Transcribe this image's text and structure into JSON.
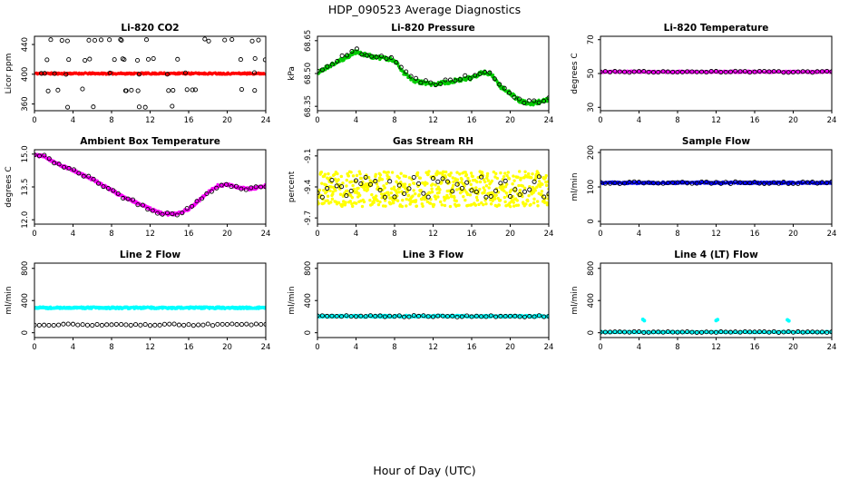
{
  "title": "HDP_090523  Average Diagnostics",
  "footer": "Hour of Day (UTC)",
  "axis": {
    "xlim": [
      0,
      24
    ],
    "xticks": [
      0,
      4,
      8,
      12,
      16,
      20,
      24
    ],
    "xtick_labels": [
      "0",
      "4",
      "8",
      "12",
      "16",
      "20",
      "24"
    ]
  },
  "chart_data": [
    {
      "type": "scatter",
      "name": "li820-co2",
      "title": "Li-820 CO2",
      "ylabel": "Licor ppm",
      "ylim": [
        351,
        451
      ],
      "yticks": [
        360,
        400,
        440
      ],
      "ytick_labels": [
        "360",
        "400",
        "440"
      ],
      "series": [
        {
          "name": "minute-data",
          "style": "dot",
          "color": "#FF0000",
          "mode": "waypoints",
          "waypoints": [
            [
              0,
              401
            ],
            [
              24,
              401
            ]
          ],
          "count": 450,
          "noise": 1.3,
          "size": 1.5,
          "seed": 11
        },
        {
          "name": "halfhour-averages",
          "style": "circle",
          "color": "#000000",
          "mode": "levels",
          "levels": [
            446,
            420,
            401,
            379,
            357
          ],
          "count": 58,
          "noise": 1.5,
          "seed": 12
        }
      ]
    },
    {
      "type": "scatter",
      "name": "li820-pressure",
      "title": "Li-820 Pressure",
      "ylabel": "kPa",
      "ylim": [
        68.33,
        68.67
      ],
      "yticks": [
        68.35,
        68.5,
        68.65
      ],
      "ytick_labels": [
        "68.35",
        "68.50",
        "68.65"
      ],
      "series": [
        {
          "name": "minute-data",
          "style": "dot",
          "color": "#00CC00",
          "mode": "waypoints",
          "waypoints": [
            [
              0,
              68.5
            ],
            [
              1,
              68.53
            ],
            [
              2,
              68.55
            ],
            [
              3,
              68.575
            ],
            [
              4,
              68.6
            ],
            [
              5,
              68.585
            ],
            [
              6,
              68.575
            ],
            [
              7,
              68.57
            ],
            [
              8,
              68.56
            ],
            [
              9,
              68.5
            ],
            [
              10,
              68.465
            ],
            [
              12,
              68.45
            ],
            [
              14,
              68.465
            ],
            [
              16,
              68.48
            ],
            [
              17,
              68.505
            ],
            [
              18,
              68.5
            ],
            [
              19,
              68.44
            ],
            [
              20,
              68.41
            ],
            [
              21,
              68.375
            ],
            [
              22,
              68.36
            ],
            [
              23,
              68.37
            ],
            [
              24,
              68.38
            ]
          ],
          "count": 420,
          "noise": 0.009,
          "size": 1.6,
          "seed": 21
        },
        {
          "name": "halfhour-averages",
          "style": "circle",
          "color": "#000000",
          "mode": "waypoints",
          "waypoints": [
            [
              0,
              68.508
            ],
            [
              1,
              68.538
            ],
            [
              2,
              68.558
            ],
            [
              3,
              68.583
            ],
            [
              4,
              68.608
            ],
            [
              5,
              68.593
            ],
            [
              6,
              68.583
            ],
            [
              7,
              68.578
            ],
            [
              8,
              68.568
            ],
            [
              9,
              68.508
            ],
            [
              10,
              68.473
            ],
            [
              12,
              68.458
            ],
            [
              14,
              68.473
            ],
            [
              16,
              68.488
            ],
            [
              17,
              68.513
            ],
            [
              18,
              68.508
            ],
            [
              19,
              68.448
            ],
            [
              20,
              68.418
            ],
            [
              21,
              68.383
            ],
            [
              22,
              68.368
            ],
            [
              23,
              68.378
            ],
            [
              24,
              68.388
            ]
          ],
          "count": 48,
          "noise": 0.012,
          "seed": 22
        }
      ]
    },
    {
      "type": "scatter",
      "name": "li820-temperature",
      "title": "Li-820 Temperature",
      "ylabel": "degrees C",
      "ylim": [
        28,
        72
      ],
      "yticks": [
        30,
        50,
        70
      ],
      "ytick_labels": [
        "30",
        "50",
        "70"
      ],
      "series": [
        {
          "name": "minute-data",
          "style": "dot",
          "color": "#FF00FF",
          "mode": "waypoints",
          "waypoints": [
            [
              0,
              51
            ],
            [
              24,
              51
            ]
          ],
          "count": 420,
          "noise": 0.5,
          "size": 1.6,
          "seed": 31
        },
        {
          "name": "halfhour-averages",
          "style": "circle",
          "color": "#000000",
          "mode": "waypoints",
          "waypoints": [
            [
              0,
              51
            ],
            [
              24,
              51
            ]
          ],
          "count": 49,
          "noise": 0.4,
          "seed": 32
        }
      ]
    },
    {
      "type": "scatter",
      "name": "ambient-box-temperature",
      "title": "Ambient Box Temperature",
      "ylabel": "degrees C",
      "ylim": [
        11.8,
        15.2
      ],
      "yticks": [
        12.0,
        13.5,
        15.0
      ],
      "ytick_labels": [
        "12.0",
        "13.5",
        "15.0"
      ],
      "series": [
        {
          "name": "minute-data",
          "style": "dot",
          "color": "#FF00FF",
          "mode": "waypoints",
          "waypoints": [
            [
              0,
              14.95
            ],
            [
              1,
              14.9
            ],
            [
              2,
              14.65
            ],
            [
              3,
              14.45
            ],
            [
              4,
              14.25
            ],
            [
              5,
              14.05
            ],
            [
              6,
              13.85
            ],
            [
              7,
              13.6
            ],
            [
              8,
              13.35
            ],
            [
              9,
              13.1
            ],
            [
              10,
              12.9
            ],
            [
              11,
              12.7
            ],
            [
              12,
              12.5
            ],
            [
              13,
              12.32
            ],
            [
              14,
              12.25
            ],
            [
              15,
              12.3
            ],
            [
              16,
              12.5
            ],
            [
              17,
              12.85
            ],
            [
              18,
              13.25
            ],
            [
              19,
              13.55
            ],
            [
              20,
              13.6
            ],
            [
              21,
              13.5
            ],
            [
              22,
              13.4
            ],
            [
              23,
              13.45
            ],
            [
              24,
              13.55
            ]
          ],
          "count": 420,
          "noise": 0.06,
          "size": 1.6,
          "seed": 41
        },
        {
          "name": "halfhour-averages",
          "style": "circle",
          "color": "#000000",
          "mode": "waypoints",
          "waypoints": [
            [
              0,
              14.95
            ],
            [
              1,
              14.9
            ],
            [
              2,
              14.65
            ],
            [
              3,
              14.45
            ],
            [
              4,
              14.25
            ],
            [
              5,
              14.05
            ],
            [
              6,
              13.85
            ],
            [
              7,
              13.6
            ],
            [
              8,
              13.35
            ],
            [
              9,
              13.1
            ],
            [
              10,
              12.9
            ],
            [
              11,
              12.7
            ],
            [
              12,
              12.5
            ],
            [
              13,
              12.32
            ],
            [
              14,
              12.25
            ],
            [
              15,
              12.3
            ],
            [
              16,
              12.5
            ],
            [
              17,
              12.85
            ],
            [
              18,
              13.25
            ],
            [
              19,
              13.55
            ],
            [
              20,
              13.6
            ],
            [
              21,
              13.5
            ],
            [
              22,
              13.4
            ],
            [
              23,
              13.45
            ],
            [
              24,
              13.55
            ]
          ],
          "count": 48,
          "noise": 0.08,
          "seed": 42
        }
      ]
    },
    {
      "type": "scatter",
      "name": "gas-stream-rh",
      "title": "Gas Stream RH",
      "ylabel": "percent",
      "ylim": [
        -9.76,
        -9.04
      ],
      "yticks": [
        -9.7,
        -9.4,
        -9.1
      ],
      "ytick_labels": [
        "-9.7",
        "-9.4",
        "-9.1"
      ],
      "series": [
        {
          "name": "minute-data",
          "style": "dot",
          "color": "#FFFF00",
          "mode": "waypoints",
          "waypoints": [
            [
              0,
              -9.42
            ],
            [
              24,
              -9.42
            ]
          ],
          "count": 640,
          "noise": 0.17,
          "size": 1.7,
          "seed": 51
        },
        {
          "name": "halfhour-averages",
          "style": "circle",
          "color": "#000000",
          "mode": "waypoints",
          "waypoints": [
            [
              0,
              -9.4
            ],
            [
              24,
              -9.4
            ]
          ],
          "count": 49,
          "noise": 0.1,
          "seed": 52
        }
      ]
    },
    {
      "type": "scatter",
      "name": "sample-flow",
      "title": "Sample Flow",
      "ylabel": "ml/min",
      "ylim": [
        -8,
        208
      ],
      "yticks": [
        0,
        100,
        200
      ],
      "ytick_labels": [
        "0",
        "100",
        "200"
      ],
      "series": [
        {
          "name": "minute-data",
          "style": "dot",
          "color": "#0000FF",
          "mode": "waypoints",
          "waypoints": [
            [
              0,
              112
            ],
            [
              24,
              112
            ]
          ],
          "count": 420,
          "noise": 3,
          "size": 1.6,
          "seed": 61
        },
        {
          "name": "halfhour-averages",
          "style": "circle",
          "color": "#000000",
          "mode": "waypoints",
          "waypoints": [
            [
              0,
              112
            ],
            [
              24,
              112
            ]
          ],
          "count": 49,
          "noise": 3,
          "seed": 62
        }
      ]
    },
    {
      "type": "scatter",
      "name": "line-2-flow",
      "title": "Line 2 Flow",
      "ylabel": "ml/min",
      "ylim": [
        -60,
        865
      ],
      "yticks": [
        0,
        400,
        800
      ],
      "ytick_labels": [
        "0",
        "400",
        "800"
      ],
      "series": [
        {
          "name": "minute-data",
          "style": "dot",
          "color": "#00FFFF",
          "mode": "waypoints",
          "waypoints": [
            [
              0,
              310
            ],
            [
              24,
              310
            ]
          ],
          "count": 420,
          "noise": 12,
          "size": 1.7,
          "seed": 71
        },
        {
          "name": "halfhour-averages",
          "style": "circle",
          "color": "#000000",
          "mode": "waypoints",
          "waypoints": [
            [
              0,
              100
            ],
            [
              24,
              100
            ]
          ],
          "count": 49,
          "noise": 10,
          "seed": 72
        }
      ]
    },
    {
      "type": "scatter",
      "name": "line-3-flow",
      "title": "Line 3 Flow",
      "ylabel": "ml/min",
      "ylim": [
        -60,
        865
      ],
      "yticks": [
        0,
        400,
        800
      ],
      "ytick_labels": [
        "0",
        "400",
        "800"
      ],
      "series": [
        {
          "name": "minute-data",
          "style": "dot",
          "color": "#00FFFF",
          "mode": "waypoints",
          "waypoints": [
            [
              0,
              205
            ],
            [
              24,
              205
            ]
          ],
          "count": 420,
          "noise": 12,
          "size": 1.7,
          "seed": 81
        },
        {
          "name": "halfhour-averages",
          "style": "circle",
          "color": "#000000",
          "mode": "waypoints",
          "waypoints": [
            [
              0,
              205
            ],
            [
              24,
              205
            ]
          ],
          "count": 49,
          "noise": 10,
          "seed": 82
        }
      ]
    },
    {
      "type": "scatter",
      "name": "line-4-lt-flow",
      "title": "Line 4 (LT) Flow",
      "ylabel": "ml/min",
      "ylim": [
        -60,
        865
      ],
      "yticks": [
        0,
        400,
        800
      ],
      "ytick_labels": [
        "0",
        "400",
        "800"
      ],
      "series": [
        {
          "name": "minute-data",
          "style": "dot",
          "color": "#00FFFF",
          "mode": "waypoints",
          "waypoints": [
            [
              0,
              8
            ],
            [
              24,
              8
            ]
          ],
          "count": 420,
          "noise": 7,
          "size": 1.7,
          "seed": 91
        },
        {
          "name": "spike-points",
          "style": "dot",
          "color": "#00FFFF",
          "mode": "points",
          "points": [
            [
              4.4,
              165
            ],
            [
              4.55,
              150
            ],
            [
              12.0,
              152
            ],
            [
              12.15,
              163
            ],
            [
              19.4,
              160
            ],
            [
              19.55,
              147
            ]
          ],
          "size": 2,
          "seed": 92
        },
        {
          "name": "halfhour-averages",
          "style": "circle",
          "color": "#000000",
          "mode": "waypoints",
          "waypoints": [
            [
              0,
              8
            ],
            [
              24,
              8
            ]
          ],
          "count": 49,
          "noise": 6,
          "seed": 93
        }
      ]
    }
  ]
}
